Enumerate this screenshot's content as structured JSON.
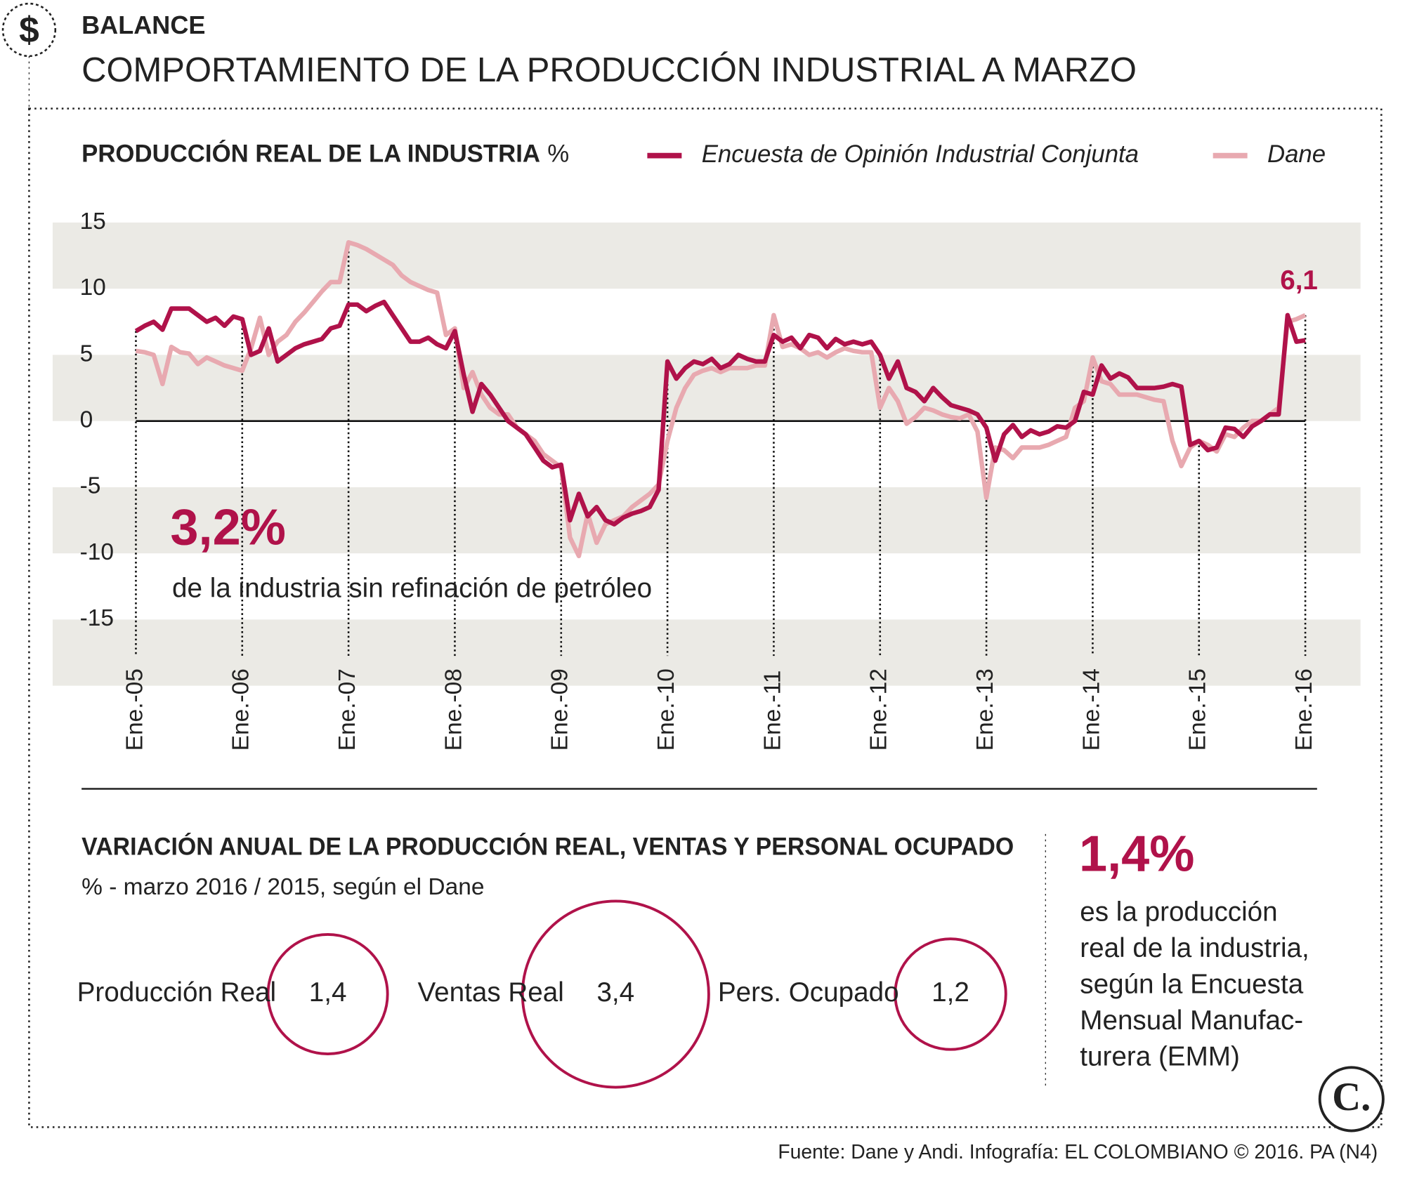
{
  "header": {
    "section": "BALANCE",
    "title": "COMPORTAMIENTO DE LA PRODUCCIÓN INDUSTRIAL A MARZO"
  },
  "chart_data": [
    {
      "type": "line",
      "title": "PRODUCCIÓN REAL DE LA INDUSTRIA",
      "unit": "%",
      "categories": [
        "Ene.-05",
        null,
        null,
        null,
        null,
        null,
        null,
        null,
        null,
        null,
        null,
        null,
        "Ene.-06",
        null,
        null,
        null,
        null,
        null,
        null,
        null,
        null,
        null,
        null,
        null,
        "Ene.-07",
        null,
        null,
        null,
        null,
        null,
        null,
        null,
        null,
        null,
        null,
        null,
        "Ene.-08",
        null,
        null,
        null,
        null,
        null,
        null,
        null,
        null,
        null,
        null,
        null,
        "Ene.-09",
        null,
        null,
        null,
        null,
        null,
        null,
        null,
        null,
        null,
        null,
        null,
        "Ene.-10",
        null,
        null,
        null,
        null,
        null,
        null,
        null,
        null,
        null,
        null,
        null,
        "Ene.-11",
        null,
        null,
        null,
        null,
        null,
        null,
        null,
        null,
        null,
        null,
        null,
        "Ene.-12",
        null,
        null,
        null,
        null,
        null,
        null,
        null,
        null,
        null,
        null,
        null,
        "Ene.-13",
        null,
        null,
        null,
        null,
        null,
        null,
        null,
        null,
        null,
        null,
        null,
        "Ene.-14",
        null,
        null,
        null,
        null,
        null,
        null,
        null,
        null,
        null,
        null,
        null,
        "Ene.-15",
        null,
        null,
        null,
        null,
        null,
        null,
        null,
        null,
        null,
        null,
        null,
        "Ene.-16"
      ],
      "series": [
        {
          "name": "Encuesta de Opinión Industrial Conjunta",
          "color": "#b0124a",
          "values": [
            6.8,
            7.2,
            7.5,
            6.9,
            8.5,
            8.5,
            8.5,
            8.0,
            7.5,
            7.8,
            7.2,
            7.9,
            7.7,
            5.0,
            5.3,
            7.0,
            4.5,
            5.0,
            5.5,
            5.8,
            6.0,
            6.2,
            7.0,
            7.2,
            8.8,
            8.8,
            8.3,
            8.7,
            9.0,
            8.0,
            7.0,
            6.0,
            6.0,
            6.3,
            5.8,
            5.5,
            6.8,
            3.5,
            0.7,
            2.8,
            2.0,
            1.0,
            0.0,
            -0.5,
            -1.0,
            -2.0,
            -3.0,
            -3.5,
            -3.3,
            -7.5,
            -5.5,
            -7.2,
            -6.5,
            -7.5,
            -7.8,
            -7.3,
            -7.0,
            -6.8,
            -6.5,
            -5.2,
            4.5,
            3.2,
            4.0,
            4.5,
            4.3,
            4.7,
            4.0,
            4.3,
            5.0,
            4.7,
            4.5,
            4.5,
            6.5,
            6.0,
            6.3,
            5.5,
            6.5,
            6.3,
            5.5,
            6.2,
            5.8,
            6.0,
            5.8,
            6.0,
            5.0,
            3.2,
            4.5,
            2.5,
            2.2,
            1.5,
            2.5,
            1.8,
            1.2,
            1.0,
            0.8,
            0.5,
            -0.5,
            -3.0,
            -1.0,
            -0.3,
            -1.2,
            -0.7,
            -1.0,
            -0.8,
            -0.4,
            -0.5,
            0.0,
            2.2,
            2.0,
            4.2,
            3.2,
            3.6,
            3.3,
            2.5,
            2.5,
            2.5,
            2.6,
            2.8,
            2.6,
            -1.8,
            -1.5,
            -2.2,
            -2.0,
            -0.5,
            -0.6,
            -1.2,
            -0.4,
            0.0,
            0.5,
            0.5,
            8.0,
            6.0,
            6.1
          ]
        },
        {
          "name": "Dane",
          "color": "#e8a9b0",
          "values": [
            5.3,
            5.2,
            5.0,
            2.8,
            5.6,
            5.2,
            5.1,
            4.3,
            4.8,
            4.5,
            4.2,
            4.0,
            3.8,
            5.5,
            7.8,
            5.0,
            6.0,
            6.5,
            7.5,
            8.2,
            9.0,
            9.8,
            10.5,
            10.5,
            13.5,
            13.3,
            13.0,
            12.6,
            12.2,
            11.8,
            11.0,
            10.5,
            10.2,
            9.9,
            9.7,
            6.5,
            7.0,
            2.5,
            3.7,
            2.0,
            1.0,
            0.5,
            0.5,
            -0.5,
            -1.0,
            -1.5,
            -2.5,
            -3.0,
            -3.5,
            -8.8,
            -10.2,
            -7.0,
            -9.2,
            -7.8,
            -7.5,
            -7.2,
            -6.5,
            -6.0,
            -5.5,
            -4.8,
            -1.5,
            1.0,
            2.5,
            3.5,
            3.8,
            4.0,
            3.7,
            4.0,
            4.0,
            4.0,
            4.2,
            4.2,
            8.0,
            5.6,
            5.8,
            5.5,
            5.0,
            5.2,
            4.8,
            5.2,
            5.5,
            5.3,
            5.2,
            5.2,
            1.0,
            2.5,
            1.5,
            -0.2,
            0.3,
            1.0,
            0.8,
            0.5,
            0.3,
            0.2,
            0.5,
            -0.8,
            -5.8,
            -2.0,
            -2.2,
            -2.8,
            -2.0,
            -2.0,
            -2.0,
            -1.8,
            -1.5,
            -1.2,
            1.0,
            1.5,
            4.8,
            3.0,
            2.8,
            2.0,
            2.0,
            2.0,
            1.8,
            1.6,
            1.5,
            -1.5,
            -3.4,
            -2.0,
            -1.5,
            -1.8,
            -2.3,
            -1.0,
            -1.2,
            -0.5,
            0.0,
            0.0,
            0.5,
            1.0,
            7.5,
            7.7,
            8.0
          ]
        }
      ],
      "ylim": [
        -20,
        15
      ],
      "yticks": [
        15,
        10,
        5,
        0,
        -5,
        -10,
        -15
      ],
      "annotations": [
        {
          "text": "6,1"
        },
        {
          "text": "3,2%"
        },
        {
          "text": "de la industria sin refinación de petróleo"
        }
      ]
    },
    {
      "type": "bubble",
      "title": "VARIACIÓN ANUAL DE LA PRODUCCIÓN REAL, VENTAS Y PERSONAL OCUPADO",
      "subtitle": "% - marzo 2016 / 2015, según el Dane",
      "categories": [
        "Producción Real",
        "Ventas Real",
        "Pers. Ocupado"
      ],
      "values": [
        1.4,
        3.4,
        1.2
      ],
      "value_labels": [
        "1,4",
        "3,4",
        "1,2"
      ],
      "color": "#b0124a"
    }
  ],
  "sidebar": {
    "figure": "1,4%",
    "text": [
      "es la producción",
      "real de la industria,",
      "según la Encuesta",
      "Mensual Manufac-",
      "turera (EMM)"
    ]
  },
  "source": "Fuente: Dane y Andi. Infografía: EL COLOMBIANO © 2016. PA (N4)"
}
